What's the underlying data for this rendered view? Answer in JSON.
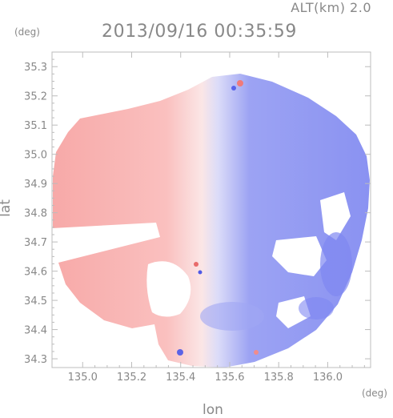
{
  "header": {
    "altitude": "ALT(km) 2.0",
    "timestamp": "2013/09/16 00:35:59"
  },
  "axes": {
    "x_title": "lon",
    "y_title": "lat",
    "x_unit": "(deg)",
    "y_unit": "(deg)",
    "x_ticks": [
      "135.0",
      "135.2",
      "135.4",
      "135.6",
      "135.8",
      "136.0"
    ],
    "y_ticks": [
      "35.3",
      "35.2",
      "35.1",
      "35.0",
      "34.9",
      "34.8",
      "34.7",
      "34.6",
      "34.5",
      "34.4",
      "34.3"
    ],
    "x_range": [
      134.875,
      136.175
    ],
    "y_range": [
      34.27,
      35.35
    ]
  },
  "colors": {
    "approaching": "#6f78f0",
    "receding": "#f5a7a6",
    "frame": "#bcbcbc"
  }
}
